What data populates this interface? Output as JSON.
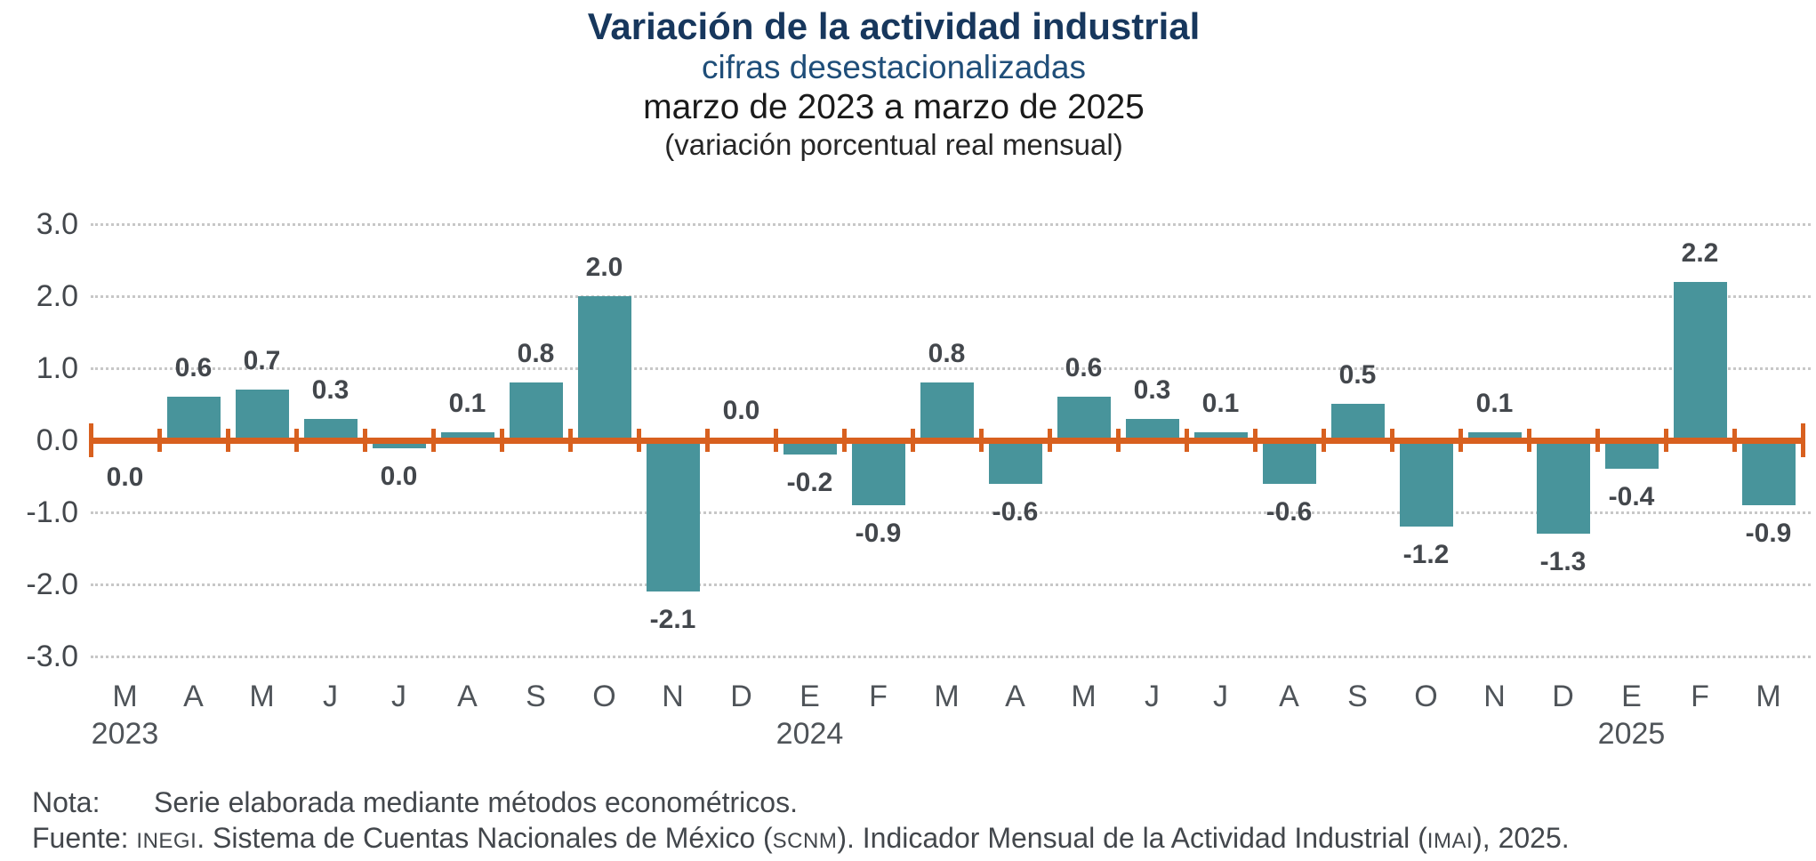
{
  "header": {
    "title": "Variación de la actividad industrial",
    "subtitle": "cifras desestacionalizadas",
    "period": "marzo de 2023 a marzo de 2025",
    "units": "(variación porcentual real mensual)"
  },
  "colors": {
    "bar": "#48949B",
    "axis": "#D8601F",
    "gridline": "#C7C7C7",
    "title": "#17375D",
    "subtitle": "#1F4E79",
    "value_label": "#43474C",
    "month_label": "#4F5459"
  },
  "chart_data": {
    "type": "bar",
    "title": "Variación de la actividad industrial",
    "subtitle": "cifras desestacionalizadas",
    "period": "marzo de 2023 a marzo de 2025",
    "units_note": "(variación porcentual real mensual)",
    "ylim": [
      -3.0,
      3.0
    ],
    "ytick_labels": [
      "3.0",
      "2.0",
      "1.0",
      "0.0",
      "-1.0",
      "-2.0",
      "-3.0"
    ],
    "ytick_values": [
      3,
      2,
      1,
      0,
      -1,
      -2,
      -3
    ],
    "grid": "horizontal dotted, zero line solid orange with category ticks",
    "legend": "none",
    "categories": [
      "M",
      "A",
      "M",
      "J",
      "J",
      "A",
      "S",
      "O",
      "N",
      "D",
      "E",
      "F",
      "M",
      "A",
      "M",
      "J",
      "J",
      "A",
      "S",
      "O",
      "N",
      "D",
      "E",
      "F",
      "M"
    ],
    "values": [
      0.0,
      0.6,
      0.7,
      0.3,
      -0.04,
      0.1,
      0.8,
      2.0,
      -2.1,
      0.0,
      -0.2,
      -0.9,
      0.8,
      -0.6,
      0.6,
      0.3,
      0.1,
      -0.6,
      0.5,
      -1.2,
      0.1,
      -1.3,
      -0.4,
      2.2,
      -0.9
    ],
    "labels": [
      "0.0",
      "0.6",
      "0.7",
      "0.3",
      "0.0",
      "0.1",
      "0.8",
      "2.0",
      "-2.1",
      "0.0",
      "-0.2",
      "-0.9",
      "0.8",
      "-0.6",
      "0.6",
      "0.3",
      "0.1",
      "-0.6",
      "0.5",
      "-1.2",
      "0.1",
      "-1.3",
      "-0.4",
      "2.2",
      "-0.9"
    ],
    "label_side": [
      "below",
      "above",
      "above",
      "above",
      "below",
      "above",
      "above",
      "above",
      "below",
      "above",
      "below",
      "below",
      "above",
      "below",
      "above",
      "above",
      "above",
      "below",
      "above",
      "below",
      "above",
      "below",
      "below",
      "above",
      "below"
    ],
    "years": [
      {
        "index": 0,
        "label": "2023"
      },
      {
        "index": 10,
        "label": "2024"
      },
      {
        "index": 22,
        "label": "2025"
      }
    ]
  },
  "footer": {
    "nota_label": "Nota:",
    "nota_text": "Serie elaborada mediante métodos econométricos.",
    "fuente_label": "Fuente: ",
    "fuente_seg1": "INEGI",
    "fuente_seg2": ". Sistema de Cuentas Nacionales de México (",
    "fuente_seg3": "SCNM",
    "fuente_seg4": "). Indicador Mensual de la Actividad Industrial (",
    "fuente_seg5": "IMAI",
    "fuente_seg6": "), 2025."
  }
}
